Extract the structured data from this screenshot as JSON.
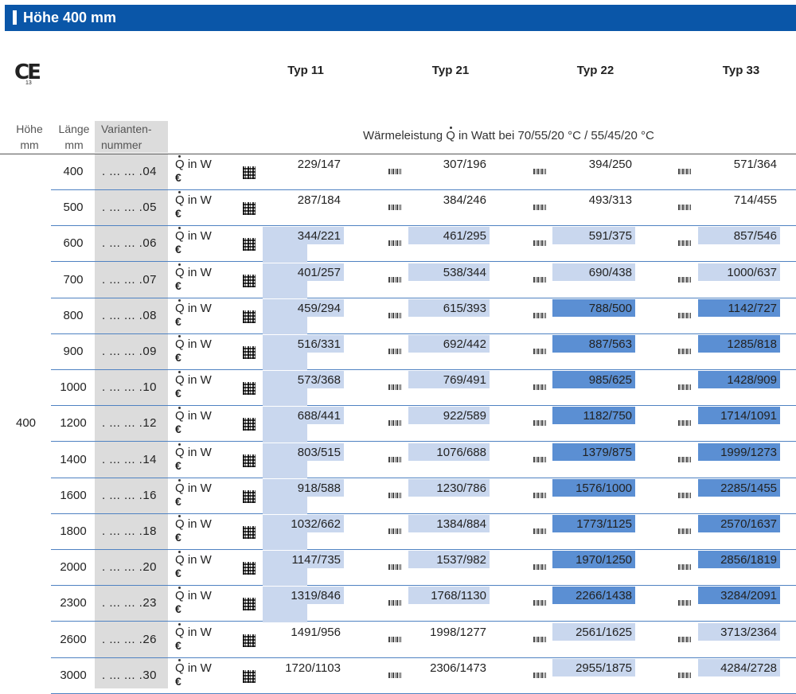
{
  "header": {
    "title": "Höhe 400 mm"
  },
  "ce_mark": {
    "label": "CE",
    "sub": "13"
  },
  "types": [
    "Typ 11",
    "Typ 21",
    "Typ 22",
    "Typ 33"
  ],
  "columns": {
    "hoehe": [
      "Höhe",
      "mm"
    ],
    "laenge": [
      "Länge",
      "mm"
    ],
    "variante": [
      "Varianten-",
      "nummer"
    ],
    "waermeleistung_pre": "Wärmeleistung ",
    "waermeleistung_q": "Q",
    "waermeleistung_post": " in Watt bei 70/55/20 °C / 55/45/20 °C"
  },
  "height_value": "400",
  "unit_labels": {
    "q": "Q",
    "q_suffix": " in W",
    "euro": "€"
  },
  "colors": {
    "light_blue": "#c9d7ee",
    "mid_blue": "#5b8fd3",
    "header_blue": "#0a56a8"
  },
  "rows": [
    {
      "length": "400",
      "variant": ". ... ... .04",
      "values": [
        "229/147",
        "307/196",
        "394/250",
        "571/364"
      ],
      "shade": [
        "none",
        "none",
        "none",
        "none"
      ]
    },
    {
      "length": "500",
      "variant": ". ... ... .05",
      "values": [
        "287/184",
        "384/246",
        "493/313",
        "714/455"
      ],
      "shade": [
        "none",
        "none",
        "none",
        "none"
      ]
    },
    {
      "length": "600",
      "variant": ". ... ... .06",
      "values": [
        "344/221",
        "461/295",
        "591/375",
        "857/546"
      ],
      "shade": [
        "light",
        "light",
        "light",
        "light"
      ]
    },
    {
      "length": "700",
      "variant": ". ... ... .07",
      "values": [
        "401/257",
        "538/344",
        "690/438",
        "1000/637"
      ],
      "shade": [
        "light",
        "light",
        "light",
        "light"
      ]
    },
    {
      "length": "800",
      "variant": ". ... ... .08",
      "values": [
        "459/294",
        "615/393",
        "788/500",
        "1142/727"
      ],
      "shade": [
        "light",
        "light",
        "dark",
        "dark"
      ]
    },
    {
      "length": "900",
      "variant": ". ... ... .09",
      "values": [
        "516/331",
        "692/442",
        "887/563",
        "1285/818"
      ],
      "shade": [
        "light",
        "light",
        "dark",
        "dark"
      ]
    },
    {
      "length": "1000",
      "variant": ". ... ... .10",
      "values": [
        "573/368",
        "769/491",
        "985/625",
        "1428/909"
      ],
      "shade": [
        "light",
        "light",
        "dark",
        "dark"
      ]
    },
    {
      "length": "1200",
      "variant": ". ... ... .12",
      "values": [
        "688/441",
        "922/589",
        "1182/750",
        "1714/1091"
      ],
      "shade": [
        "light",
        "light",
        "dark",
        "dark"
      ]
    },
    {
      "length": "1400",
      "variant": ". ... ... .14",
      "values": [
        "803/515",
        "1076/688",
        "1379/875",
        "1999/1273"
      ],
      "shade": [
        "light",
        "light",
        "dark",
        "dark"
      ]
    },
    {
      "length": "1600",
      "variant": ". ... ... .16",
      "values": [
        "918/588",
        "1230/786",
        "1576/1000",
        "2285/1455"
      ],
      "shade": [
        "light",
        "light",
        "dark",
        "dark"
      ]
    },
    {
      "length": "1800",
      "variant": ". ... ... .18",
      "values": [
        "1032/662",
        "1384/884",
        "1773/1125",
        "2570/1637"
      ],
      "shade": [
        "light",
        "light",
        "dark",
        "dark"
      ]
    },
    {
      "length": "2000",
      "variant": ". ... ... .20",
      "values": [
        "1147/735",
        "1537/982",
        "1970/1250",
        "2856/1819"
      ],
      "shade": [
        "light",
        "light",
        "dark",
        "dark"
      ]
    },
    {
      "length": "2300",
      "variant": ". ... ... .23",
      "values": [
        "1319/846",
        "1768/1130",
        "2266/1438",
        "3284/2091"
      ],
      "shade": [
        "light",
        "light",
        "dark",
        "dark"
      ]
    },
    {
      "length": "2600",
      "variant": ". ... ... .26",
      "values": [
        "1491/956",
        "1998/1277",
        "2561/1625",
        "3713/2364"
      ],
      "shade": [
        "none",
        "none",
        "light",
        "light"
      ]
    },
    {
      "length": "3000",
      "variant": ". ... ... .30",
      "values": [
        "1720/1103",
        "2306/1473",
        "2955/1875",
        "4284/2728"
      ],
      "shade": [
        "none",
        "none",
        "light",
        "light"
      ]
    }
  ]
}
